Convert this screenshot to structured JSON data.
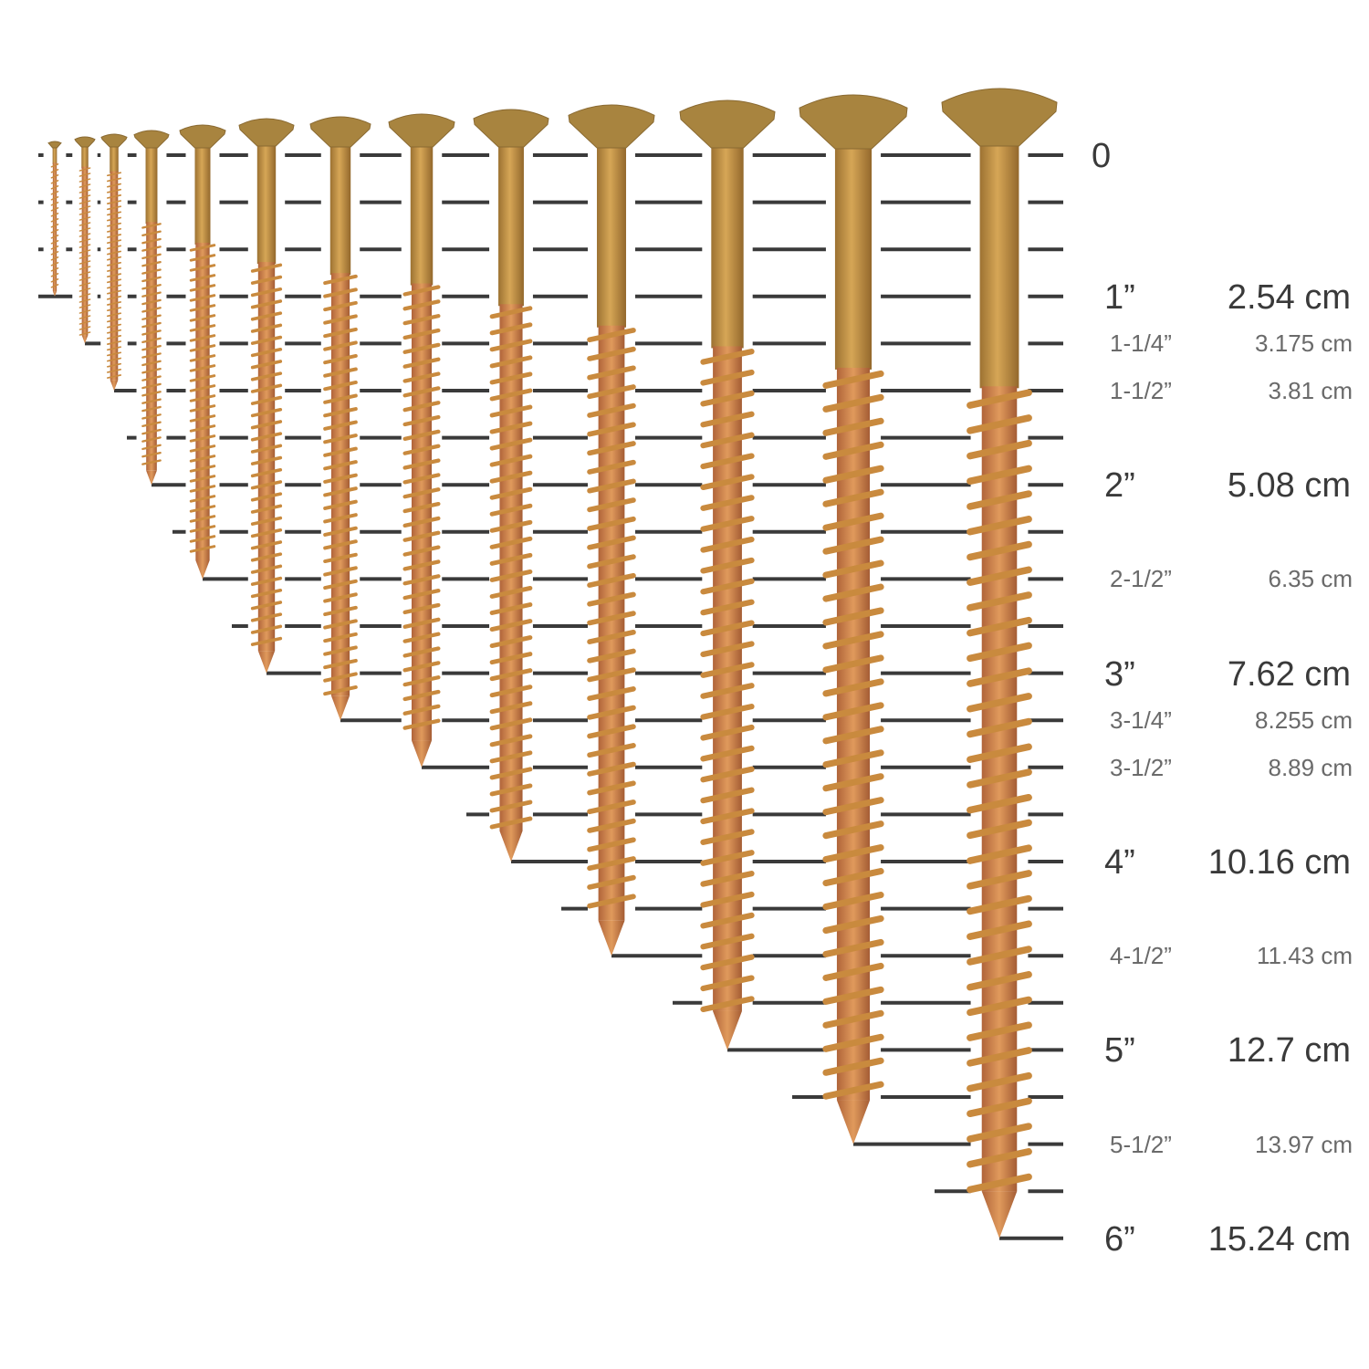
{
  "colors": {
    "line": "#3a3a3a",
    "head": "#a8843f",
    "shank": "#c8953f",
    "thread": "#d08850",
    "major_text": "#3a3a3a",
    "minor_text": "#6a6a6a"
  },
  "scale_marks": [
    {
      "inch": "0",
      "cm": "",
      "major": true,
      "tick": 0
    },
    {
      "inch": "1”",
      "cm": "2.54 cm",
      "major": true,
      "tick": 3
    },
    {
      "inch": "1-1/4”",
      "cm": "3.175 cm",
      "major": false,
      "tick": 4
    },
    {
      "inch": "1-1/2”",
      "cm": "3.81 cm",
      "major": false,
      "tick": 5
    },
    {
      "inch": "2”",
      "cm": "5.08 cm",
      "major": true,
      "tick": 7
    },
    {
      "inch": "2-1/2”",
      "cm": "6.35 cm",
      "major": false,
      "tick": 9
    },
    {
      "inch": "3”",
      "cm": "7.62 cm",
      "major": true,
      "tick": 11
    },
    {
      "inch": "3-1/4”",
      "cm": "8.255 cm",
      "major": false,
      "tick": 12
    },
    {
      "inch": "3-1/2”",
      "cm": "8.89 cm",
      "major": false,
      "tick": 13
    },
    {
      "inch": "4”",
      "cm": "10.16 cm",
      "major": true,
      "tick": 15
    },
    {
      "inch": "4-1/2”",
      "cm": "11.43 cm",
      "major": false,
      "tick": 17
    },
    {
      "inch": "5”",
      "cm": "12.7 cm",
      "major": true,
      "tick": 19
    },
    {
      "inch": "5-1/2”",
      "cm": "13.97 cm",
      "major": false,
      "tick": 21
    },
    {
      "inch": "6”",
      "cm": "15.24 cm",
      "major": true,
      "tick": 23
    }
  ],
  "screw_lengths": [
    "1”",
    "1-1/4”",
    "1-1/2”",
    "2”",
    "2-1/2”",
    "3”",
    "3-1/4”",
    "3-1/2”",
    "4”",
    "4-1/2”",
    "5”",
    "5-1/2”",
    "6”"
  ]
}
